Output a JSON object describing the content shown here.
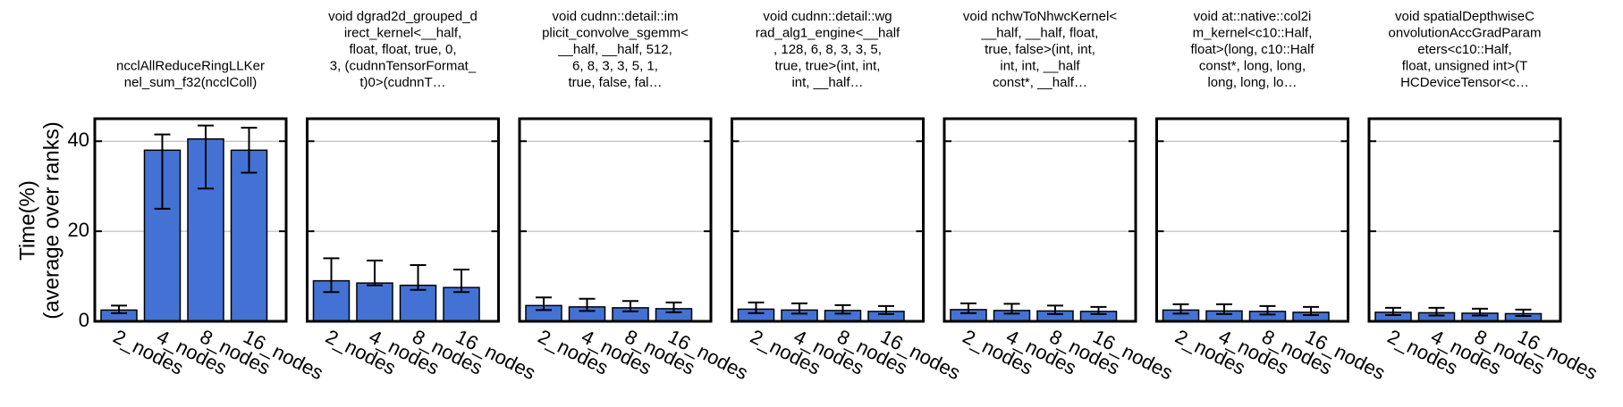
{
  "chart_data": {
    "type": "bar",
    "ylabel_lines": [
      "Time(%)",
      "(average over ranks)"
    ],
    "ylim": [
      0,
      45
    ],
    "yticks": [
      0,
      20,
      40
    ],
    "grid": true,
    "bar_color": "#4472d4",
    "categories": [
      "2_nodes",
      "4_nodes",
      "8_nodes",
      "16_nodes"
    ],
    "panels": [
      {
        "title_lines": [
          "ncclAllReduceRingLLKer",
          "nel_sum_f32(ncclColl)"
        ],
        "values": [
          2.5,
          38.0,
          40.5,
          38.0
        ],
        "err_low": [
          1.8,
          25.0,
          29.5,
          33.0
        ],
        "err_high": [
          3.5,
          41.5,
          43.5,
          43.0
        ]
      },
      {
        "title_lines": [
          "void dgrad2d_grouped_d",
          "irect_kernel<__half,",
          "float, float, true, 0,",
          "3, (cudnnTensorFormat_",
          "t)0>(cudnnT…"
        ],
        "values": [
          9.0,
          8.5,
          8.0,
          7.5
        ],
        "err_low": [
          6.5,
          8.0,
          7.0,
          6.5
        ],
        "err_high": [
          14.0,
          13.5,
          12.5,
          11.5
        ]
      },
      {
        "title_lines": [
          "void cudnn::detail::im",
          "plicit_convolve_sgemm<",
          "__half, __half, 512,",
          "6, 8, 3, 3, 5, 1,",
          "true, false, fal…"
        ],
        "values": [
          3.5,
          3.2,
          3.0,
          2.8
        ],
        "err_low": [
          2.5,
          2.3,
          2.2,
          2.0
        ],
        "err_high": [
          5.3,
          5.0,
          4.5,
          4.2
        ]
      },
      {
        "title_lines": [
          "void cudnn::detail::wg",
          "rad_alg1_engine<__half",
          ", 128, 6, 8, 3, 3, 5,",
          "true, true>(int, int,",
          "int, __half…"
        ],
        "values": [
          2.7,
          2.5,
          2.4,
          2.2
        ],
        "err_low": [
          1.8,
          1.7,
          1.7,
          1.6
        ],
        "err_high": [
          4.2,
          4.0,
          3.6,
          3.4
        ]
      },
      {
        "title_lines": [
          "void nchwToNhwcKernel<",
          "__half, __half, float,",
          "true, false>(int, int,",
          "int, int, __half",
          "const*, __half…"
        ],
        "values": [
          2.6,
          2.4,
          2.3,
          2.2
        ],
        "err_low": [
          1.8,
          1.7,
          1.6,
          1.6
        ],
        "err_high": [
          4.0,
          3.9,
          3.5,
          3.2
        ]
      },
      {
        "title_lines": [
          "void at::native::col2i",
          "m_kernel<c10::Half,",
          "float>(long, c10::Half",
          "const*, long, long,",
          "long, long, lo…"
        ],
        "values": [
          2.5,
          2.3,
          2.2,
          2.0
        ],
        "err_low": [
          1.7,
          1.6,
          1.5,
          1.4
        ],
        "err_high": [
          3.8,
          3.8,
          3.4,
          3.2
        ]
      },
      {
        "title_lines": [
          "void spatialDepthwiseC",
          "onvolutionAccGradParam",
          "eters<c10::Half,",
          "float, unsigned int>(T",
          "HCDeviceTensor<c…"
        ],
        "values": [
          2.0,
          1.9,
          1.8,
          1.7
        ],
        "err_low": [
          1.4,
          1.3,
          1.3,
          1.2
        ],
        "err_high": [
          3.0,
          3.0,
          2.8,
          2.6
        ]
      }
    ]
  }
}
